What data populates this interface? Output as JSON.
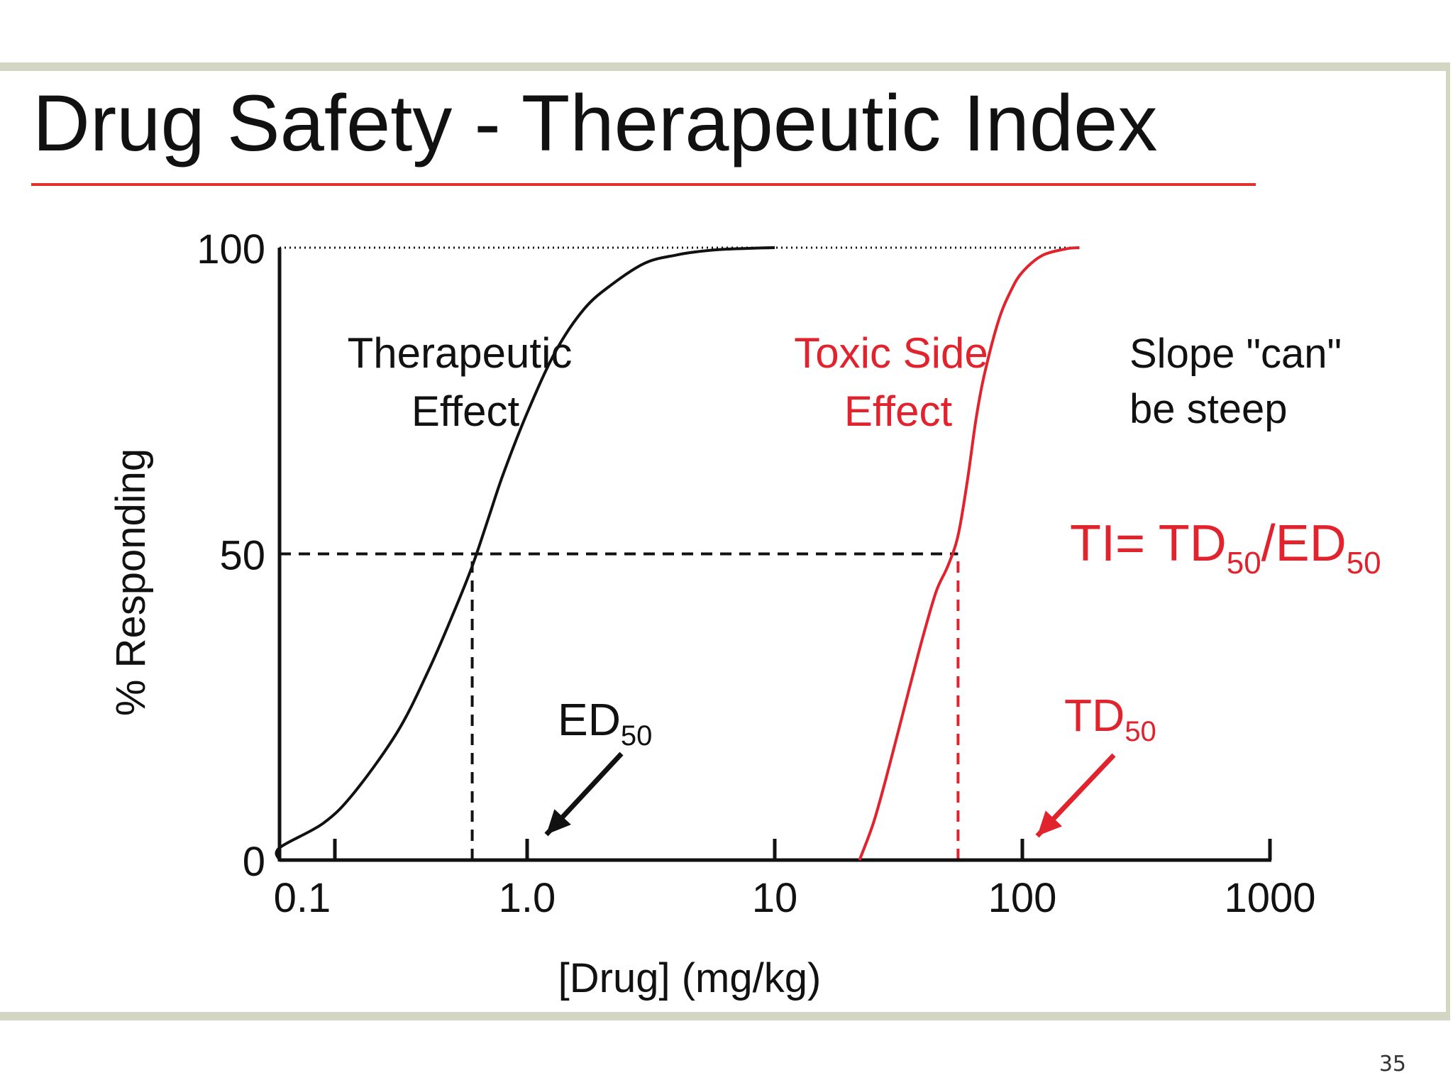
{
  "slide": {
    "title": "Drug Safety - Therapeutic Index",
    "page_number": "35"
  },
  "colors": {
    "therapeutic": "#111111",
    "toxic": "#e0232d",
    "title_rule": "#e0302f",
    "frame": "#d4d6c4"
  },
  "chart_data": {
    "type": "line",
    "title": "",
    "xlabel": "[Drug] (mg/kg)",
    "ylabel": "% Responding",
    "x_scale": "log",
    "xlim": [
      0.08,
      1000
    ],
    "ylim": [
      0,
      100
    ],
    "x_ticks": [
      0.1,
      1,
      10,
      100,
      1000
    ],
    "x_tick_labels": [
      "0.1",
      "1.0",
      "10",
      "100",
      "1000"
    ],
    "y_ticks": [
      0,
      50,
      100
    ],
    "y_tick_labels": [
      "0",
      "50",
      "100"
    ],
    "grid": false,
    "series": [
      {
        "name": "Therapeutic Effect",
        "color": "#111111",
        "x": [
          0.08,
          0.1,
          0.15,
          0.2,
          0.3,
          0.4,
          0.5,
          0.6,
          0.7,
          0.8,
          1.0,
          1.3,
          1.7,
          2.2,
          3,
          4,
          5,
          6,
          8,
          10
        ],
        "y": [
          0,
          2,
          6,
          11,
          21,
          31,
          40,
          48,
          56,
          63,
          73,
          83,
          90,
          94,
          97.5,
          98.8,
          99.4,
          99.7,
          99.9,
          100
        ]
      },
      {
        "name": "Toxic Side Effect",
        "color": "#e0232d",
        "x": [
          22,
          25,
          28,
          32,
          36,
          40,
          45,
          50,
          55,
          60,
          65,
          70,
          80,
          90,
          100,
          120,
          150,
          170
        ],
        "y": [
          0,
          6,
          13,
          22,
          30,
          37,
          44,
          48,
          53,
          62,
          72,
          79,
          88,
          93,
          96,
          98.7,
          99.8,
          100
        ]
      }
    ],
    "reference_lines": [
      {
        "kind": "horizontal",
        "y": 50,
        "x_from": 0.08,
        "x_to": 55,
        "style": "dashed",
        "color": "#111111"
      },
      {
        "kind": "horizontal",
        "y": 100,
        "x_from": 0.08,
        "x_to": 170,
        "style": "dotted",
        "color": "#111111"
      },
      {
        "kind": "vertical",
        "x": 0.6,
        "y_from": 0,
        "y_to": 50,
        "style": "dashed",
        "color": "#111111"
      },
      {
        "kind": "vertical",
        "x": 55,
        "y_from": 0,
        "y_to": 50,
        "style": "dashed",
        "color": "#e0232d"
      }
    ],
    "annotations": {
      "therapeutic_label": [
        "Therapeutic",
        "Effect"
      ],
      "toxic_label": [
        "Toxic Side",
        "Effect"
      ],
      "slope_note": [
        "Slope \"can\"",
        "be steep"
      ],
      "ti_formula": {
        "lhs": "TI= ",
        "num": "TD",
        "num_sub": "50",
        "slash": "/",
        "den": "ED",
        "den_sub": "50"
      },
      "ed50": {
        "text": "ED",
        "sub": "50",
        "points_to_x": 0.6
      },
      "td50": {
        "text": "TD",
        "sub": "50",
        "points_to_x": 55
      }
    }
  }
}
